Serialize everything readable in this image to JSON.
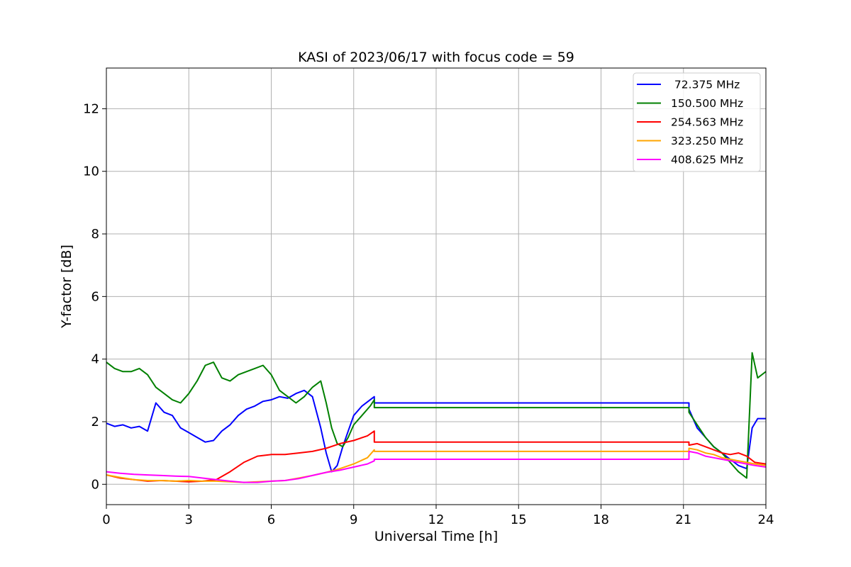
{
  "chart_data": {
    "type": "line",
    "title": "KASI of 2023/06/17 with focus code = 59",
    "xlabel": "Universal Time [h]",
    "ylabel": "Y-factor [dB]",
    "xlim": [
      0,
      24
    ],
    "ylim": [
      -0.65,
      13.3
    ],
    "xticks": [
      0,
      3,
      6,
      9,
      12,
      15,
      18,
      21,
      24
    ],
    "yticks": [
      0,
      2,
      4,
      6,
      8,
      10,
      12
    ],
    "grid": true,
    "legend_position": "top-right",
    "series": [
      {
        "name": " 72.375 MHz",
        "color": "#0000ff",
        "x": [
          0,
          0.3,
          0.6,
          0.9,
          1.2,
          1.5,
          1.8,
          2.1,
          2.4,
          2.7,
          3.0,
          3.3,
          3.6,
          3.9,
          4.2,
          4.5,
          4.8,
          5.1,
          5.4,
          5.7,
          6.0,
          6.3,
          6.6,
          6.9,
          7.2,
          7.5,
          7.8,
          8.0,
          8.2,
          8.4,
          8.6,
          8.8,
          9.0,
          9.3,
          9.6,
          9.75,
          9.75,
          21.2,
          21.2,
          21.5,
          21.8,
          22.1,
          22.4,
          22.7,
          23.0,
          23.3,
          23.5,
          23.7,
          24.0
        ],
        "y": [
          1.95,
          1.85,
          1.9,
          1.8,
          1.85,
          1.7,
          2.6,
          2.3,
          2.2,
          1.8,
          1.65,
          1.5,
          1.35,
          1.4,
          1.7,
          1.9,
          2.2,
          2.4,
          2.5,
          2.65,
          2.7,
          2.8,
          2.75,
          2.9,
          3.0,
          2.8,
          1.8,
          1.0,
          0.4,
          0.6,
          1.2,
          1.7,
          2.2,
          2.5,
          2.7,
          2.8,
          2.6,
          2.6,
          2.4,
          1.8,
          1.5,
          1.2,
          1.0,
          0.8,
          0.6,
          0.5,
          1.8,
          2.1,
          2.1
        ]
      },
      {
        "name": "150.500 MHz",
        "color": "#008000",
        "x": [
          0,
          0.3,
          0.6,
          0.9,
          1.2,
          1.5,
          1.8,
          2.1,
          2.4,
          2.7,
          3.0,
          3.3,
          3.6,
          3.9,
          4.2,
          4.5,
          4.8,
          5.1,
          5.4,
          5.7,
          6.0,
          6.3,
          6.6,
          6.9,
          7.2,
          7.5,
          7.8,
          8.0,
          8.2,
          8.4,
          8.6,
          8.8,
          9.0,
          9.3,
          9.6,
          9.75,
          9.75,
          21.2,
          21.2,
          21.5,
          21.8,
          22.1,
          22.4,
          22.7,
          23.0,
          23.3,
          23.5,
          23.7,
          24.0
        ],
        "y": [
          3.9,
          3.7,
          3.6,
          3.6,
          3.7,
          3.5,
          3.1,
          2.9,
          2.7,
          2.6,
          2.9,
          3.3,
          3.8,
          3.9,
          3.4,
          3.3,
          3.5,
          3.6,
          3.7,
          3.8,
          3.5,
          3.0,
          2.8,
          2.6,
          2.8,
          3.1,
          3.3,
          2.6,
          1.8,
          1.3,
          1.2,
          1.5,
          1.9,
          2.2,
          2.5,
          2.7,
          2.45,
          2.45,
          2.3,
          1.9,
          1.5,
          1.2,
          1.0,
          0.7,
          0.4,
          0.2,
          4.2,
          3.4,
          3.6
        ]
      },
      {
        "name": "254.563 MHz",
        "color": "#ff0000",
        "x": [
          0,
          0.5,
          1.0,
          1.5,
          2.0,
          2.5,
          3.0,
          3.5,
          4.0,
          4.5,
          5.0,
          5.5,
          6.0,
          6.5,
          7.0,
          7.5,
          8.0,
          8.5,
          9.0,
          9.5,
          9.75,
          9.75,
          21.2,
          21.2,
          21.5,
          21.8,
          22.1,
          22.4,
          22.7,
          23.0,
          23.3,
          23.6,
          24.0
        ],
        "y": [
          0.3,
          0.2,
          0.15,
          0.1,
          0.12,
          0.1,
          0.08,
          0.1,
          0.15,
          0.4,
          0.7,
          0.9,
          0.95,
          0.95,
          1.0,
          1.05,
          1.15,
          1.3,
          1.4,
          1.55,
          1.7,
          1.35,
          1.35,
          1.25,
          1.3,
          1.2,
          1.1,
          1.0,
          0.95,
          1.0,
          0.9,
          0.7,
          0.65
        ]
      },
      {
        "name": "323.250 MHz",
        "color": "#ffa500",
        "x": [
          0,
          0.5,
          1.0,
          1.5,
          2.0,
          2.5,
          3.0,
          3.5,
          4.0,
          4.5,
          5.0,
          5.5,
          6.0,
          6.5,
          7.0,
          7.5,
          8.0,
          8.5,
          9.0,
          9.5,
          9.75,
          9.75,
          21.2,
          21.2,
          21.5,
          21.8,
          22.1,
          22.4,
          22.7,
          23.0,
          23.3,
          23.6,
          24.0
        ],
        "y": [
          0.3,
          0.22,
          0.15,
          0.12,
          0.12,
          0.1,
          0.12,
          0.1,
          0.1,
          0.08,
          0.06,
          0.08,
          0.1,
          0.12,
          0.2,
          0.28,
          0.38,
          0.5,
          0.65,
          0.85,
          1.1,
          1.05,
          1.05,
          1.15,
          1.1,
          1.0,
          0.95,
          0.85,
          0.8,
          0.75,
          0.7,
          0.65,
          0.6
        ]
      },
      {
        "name": "408.625 MHz",
        "color": "#ff00ff",
        "x": [
          0,
          0.5,
          1.0,
          1.5,
          2.0,
          2.5,
          3.0,
          3.5,
          4.0,
          4.5,
          5.0,
          5.5,
          6.0,
          6.5,
          7.0,
          7.5,
          8.0,
          8.5,
          9.0,
          9.5,
          9.75,
          9.75,
          21.2,
          21.2,
          21.5,
          21.8,
          22.1,
          22.4,
          22.7,
          23.0,
          23.3,
          23.6,
          24.0
        ],
        "y": [
          0.4,
          0.35,
          0.32,
          0.3,
          0.28,
          0.26,
          0.25,
          0.2,
          0.15,
          0.1,
          0.06,
          0.06,
          0.1,
          0.12,
          0.18,
          0.28,
          0.38,
          0.45,
          0.55,
          0.65,
          0.75,
          0.8,
          0.8,
          1.05,
          1.0,
          0.9,
          0.85,
          0.8,
          0.75,
          0.7,
          0.65,
          0.6,
          0.55
        ]
      }
    ]
  }
}
